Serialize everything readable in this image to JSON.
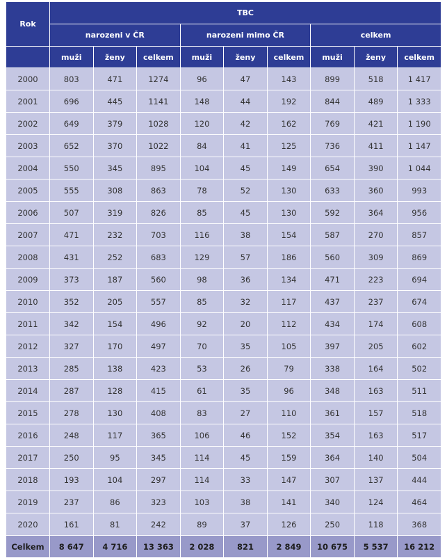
{
  "header": {
    "rok": "Rok",
    "top": "TBC",
    "groups": [
      "narozeni v ČR",
      "narozeni mimo ČR",
      "celkem"
    ],
    "sub": [
      "muži",
      "ženy",
      "celkem"
    ]
  },
  "rows": [
    {
      "year": "2000",
      "v": [
        "803",
        "471",
        "1274",
        "96",
        "47",
        "143",
        "899",
        "518",
        "1 417"
      ]
    },
    {
      "year": "2001",
      "v": [
        "696",
        "445",
        "1141",
        "148",
        "44",
        "192",
        "844",
        "489",
        "1 333"
      ]
    },
    {
      "year": "2002",
      "v": [
        "649",
        "379",
        "1028",
        "120",
        "42",
        "162",
        "769",
        "421",
        "1 190"
      ]
    },
    {
      "year": "2003",
      "v": [
        "652",
        "370",
        "1022",
        "84",
        "41",
        "125",
        "736",
        "411",
        "1 147"
      ]
    },
    {
      "year": "2004",
      "v": [
        "550",
        "345",
        "895",
        "104",
        "45",
        "149",
        "654",
        "390",
        "1 044"
      ]
    },
    {
      "year": "2005",
      "v": [
        "555",
        "308",
        "863",
        "78",
        "52",
        "130",
        "633",
        "360",
        "993"
      ]
    },
    {
      "year": "2006",
      "v": [
        "507",
        "319",
        "826",
        "85",
        "45",
        "130",
        "592",
        "364",
        "956"
      ]
    },
    {
      "year": "2007",
      "v": [
        "471",
        "232",
        "703",
        "116",
        "38",
        "154",
        "587",
        "270",
        "857"
      ]
    },
    {
      "year": "2008",
      "v": [
        "431",
        "252",
        "683",
        "129",
        "57",
        "186",
        "560",
        "309",
        "869"
      ]
    },
    {
      "year": "2009",
      "v": [
        "373",
        "187",
        "560",
        "98",
        "36",
        "134",
        "471",
        "223",
        "694"
      ]
    },
    {
      "year": "2010",
      "v": [
        "352",
        "205",
        "557",
        "85",
        "32",
        "117",
        "437",
        "237",
        "674"
      ]
    },
    {
      "year": "2011",
      "v": [
        "342",
        "154",
        "496",
        "92",
        "20",
        "112",
        "434",
        "174",
        "608"
      ]
    },
    {
      "year": "2012",
      "v": [
        "327",
        "170",
        "497",
        "70",
        "35",
        "105",
        "397",
        "205",
        "602"
      ]
    },
    {
      "year": "2013",
      "v": [
        "285",
        "138",
        "423",
        "53",
        "26",
        "79",
        "338",
        "164",
        "502"
      ]
    },
    {
      "year": "2014",
      "v": [
        "287",
        "128",
        "415",
        "61",
        "35",
        "96",
        "348",
        "163",
        "511"
      ]
    },
    {
      "year": "2015",
      "v": [
        "278",
        "130",
        "408",
        "83",
        "27",
        "110",
        "361",
        "157",
        "518"
      ]
    },
    {
      "year": "2016",
      "v": [
        "248",
        "117",
        "365",
        "106",
        "46",
        "152",
        "354",
        "163",
        "517"
      ]
    },
    {
      "year": "2017",
      "v": [
        "250",
        "95",
        "345",
        "114",
        "45",
        "159",
        "364",
        "140",
        "504"
      ]
    },
    {
      "year": "2018",
      "v": [
        "193",
        "104",
        "297",
        "114",
        "33",
        "147",
        "307",
        "137",
        "444"
      ]
    },
    {
      "year": "2019",
      "v": [
        "237",
        "86",
        "323",
        "103",
        "38",
        "141",
        "340",
        "124",
        "464"
      ]
    },
    {
      "year": "2020",
      "v": [
        "161",
        "81",
        "242",
        "89",
        "37",
        "126",
        "250",
        "118",
        "368"
      ]
    }
  ],
  "total": {
    "label": "Celkem",
    "v": [
      "8 647",
      "4 716",
      "13 363",
      "2 028",
      "821",
      "2 849",
      "10 675",
      "5 537",
      "16 212"
    ]
  },
  "colors": {
    "header_bg": "#2e3d95",
    "body_bg": "#c5c7e3",
    "total_bg": "#9899c9"
  }
}
